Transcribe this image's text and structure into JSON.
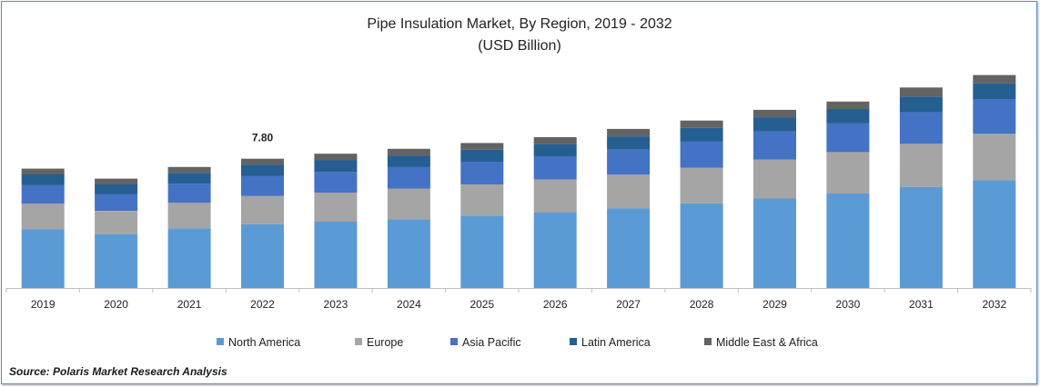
{
  "title": "Pipe Insulation Market, By Region, 2019 - 2032",
  "subtitle": "(USD Billion)",
  "source": "Source: Polaris  Market Research Analysis",
  "chart_data": {
    "type": "bar",
    "stacked": true,
    "title": "Pipe Insulation Market, By Region, 2019 - 2032",
    "subtitle": "(USD Billion)",
    "xlabel": "",
    "ylabel": "",
    "ylim": [
      0,
      14.8
    ],
    "grid": false,
    "legend_position": "bottom",
    "categories": [
      "2019",
      "2020",
      "2021",
      "2022",
      "2023",
      "2024",
      "2025",
      "2026",
      "2027",
      "2028",
      "2029",
      "2030",
      "2031",
      "2032"
    ],
    "series": [
      {
        "name": "North America",
        "color": "#5b9bd5",
        "values": [
          3.55,
          3.25,
          3.6,
          3.85,
          4.0,
          4.15,
          4.35,
          4.55,
          4.8,
          5.1,
          5.4,
          5.7,
          6.1,
          6.5
        ]
      },
      {
        "name": "Europe",
        "color": "#a5a5a5",
        "values": [
          1.55,
          1.4,
          1.55,
          1.7,
          1.75,
          1.85,
          1.9,
          2.0,
          2.05,
          2.15,
          2.35,
          2.5,
          2.6,
          2.8
        ]
      },
      {
        "name": "Asia Pacific",
        "color": "#4472c4",
        "values": [
          1.1,
          1.0,
          1.15,
          1.2,
          1.25,
          1.3,
          1.35,
          1.4,
          1.5,
          1.6,
          1.7,
          1.75,
          1.9,
          2.1
        ]
      },
      {
        "name": "Latin America",
        "color": "#255e91",
        "values": [
          0.65,
          0.6,
          0.65,
          0.7,
          0.7,
          0.7,
          0.75,
          0.75,
          0.8,
          0.8,
          0.85,
          0.85,
          0.95,
          0.95
        ]
      },
      {
        "name": "Middle East & Africa",
        "color": "#636363",
        "values": [
          0.35,
          0.35,
          0.35,
          0.35,
          0.4,
          0.4,
          0.4,
          0.4,
          0.45,
          0.45,
          0.45,
          0.45,
          0.55,
          0.5
        ]
      }
    ],
    "annotations": [
      {
        "category": "2022",
        "text": "7.80"
      }
    ]
  }
}
